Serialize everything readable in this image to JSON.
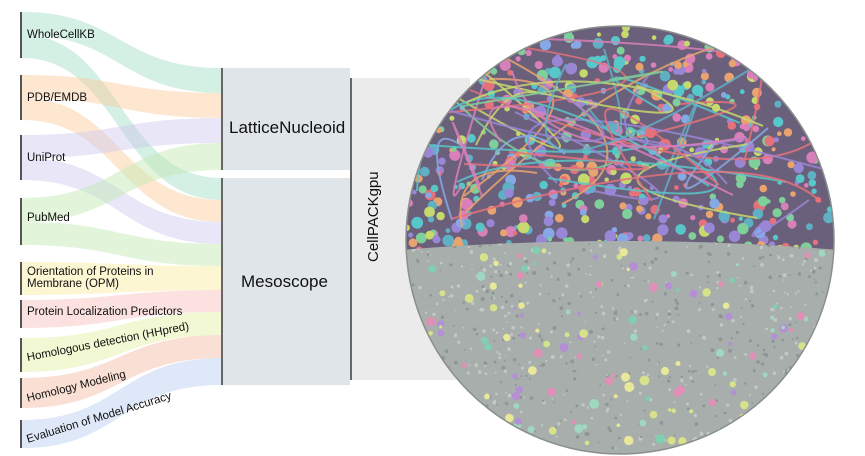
{
  "sources": [
    {
      "label": "WholeCellKB"
    },
    {
      "label": "PDB/EMDB"
    },
    {
      "label": "UniProt"
    },
    {
      "label": "PubMed"
    },
    {
      "label": "Orientation of Proteins in Membrane (OPM)"
    },
    {
      "label": "Protein Localization Predictors"
    },
    {
      "label": "Homologous detection (HHpred)"
    },
    {
      "label": "Homology Modeling"
    },
    {
      "label": "Evaluation of Model Accuracy"
    }
  ],
  "nodes": [
    {
      "label": "LatticeNucleoid"
    },
    {
      "label": "Mesoscope"
    }
  ],
  "output": {
    "label": "CellPACKgpu"
  }
}
